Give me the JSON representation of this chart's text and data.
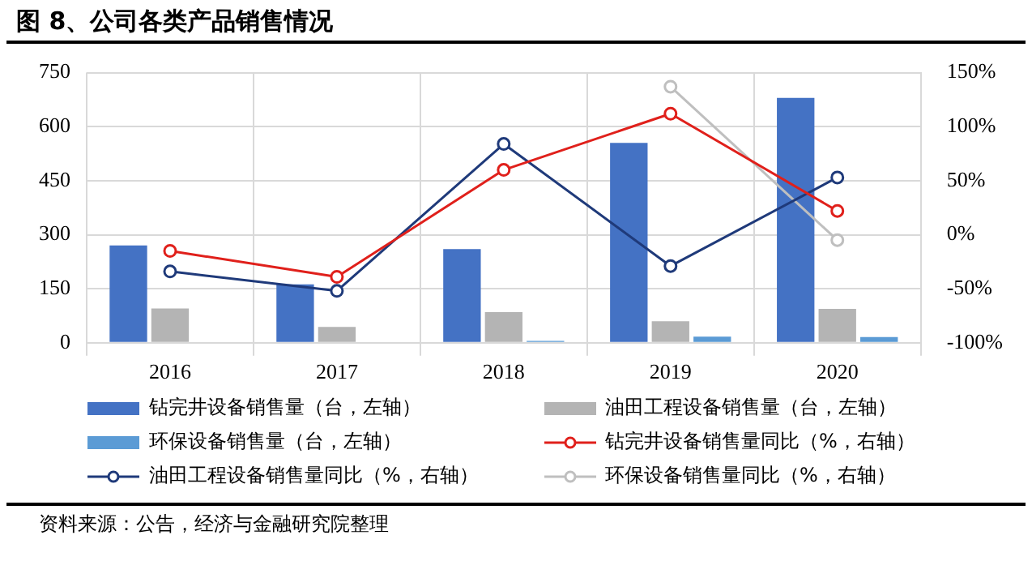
{
  "chart_data": {
    "type": "bar",
    "title": "图 8、公司各类产品销售情况",
    "categories": [
      "2016",
      "2017",
      "2018",
      "2019",
      "2020"
    ],
    "series": [
      {
        "name": "钻完井设备销售量（台，左轴）",
        "color": "#4472c4",
        "values": [
          270,
          162,
          260,
          555,
          680
        ]
      },
      {
        "name": "油田工程设备销售量（台，左轴）",
        "color": "#b4b4b4",
        "values": [
          95,
          44,
          85,
          60,
          94
        ]
      },
      {
        "name": "环保设备销售量（台，左轴）",
        "color": "#5b9bd5",
        "values": [
          0,
          0,
          5,
          17,
          16
        ]
      },
      {
        "name": "钻完井设备销售量同比（%，右轴）",
        "type": "line",
        "axis": "y2",
        "color": "#e0201b",
        "values": [
          -15,
          -39,
          60,
          112,
          22
        ]
      },
      {
        "name": "油田工程设备销售量同比（%，右轴）",
        "type": "line",
        "axis": "y2",
        "color": "#1f3a7a",
        "values": [
          -34,
          -52,
          84,
          -29,
          53
        ]
      },
      {
        "name": "环保设备销售量同比（%，右轴）",
        "type": "line",
        "axis": "y2",
        "color": "#bfbfbf",
        "values": [
          null,
          null,
          null,
          137,
          -5
        ]
      }
    ],
    "ylim": [
      0,
      750
    ],
    "yticks": [
      0,
      150,
      300,
      450,
      600,
      750
    ],
    "y2lim": [
      -100,
      150
    ],
    "y2ticks": [
      {
        "value": -100,
        "label": "-100%"
      },
      {
        "value": -50,
        "label": "-50%"
      },
      {
        "value": 0,
        "label": "0%"
      },
      {
        "value": 50,
        "label": "50%"
      },
      {
        "value": 100,
        "label": "100%"
      },
      {
        "value": 150,
        "label": "150%"
      }
    ],
    "grid": true,
    "legend": "bottom",
    "marker": "circle",
    "annotations": [
      "资料来源：公告，经济与金融研究院整理"
    ]
  }
}
